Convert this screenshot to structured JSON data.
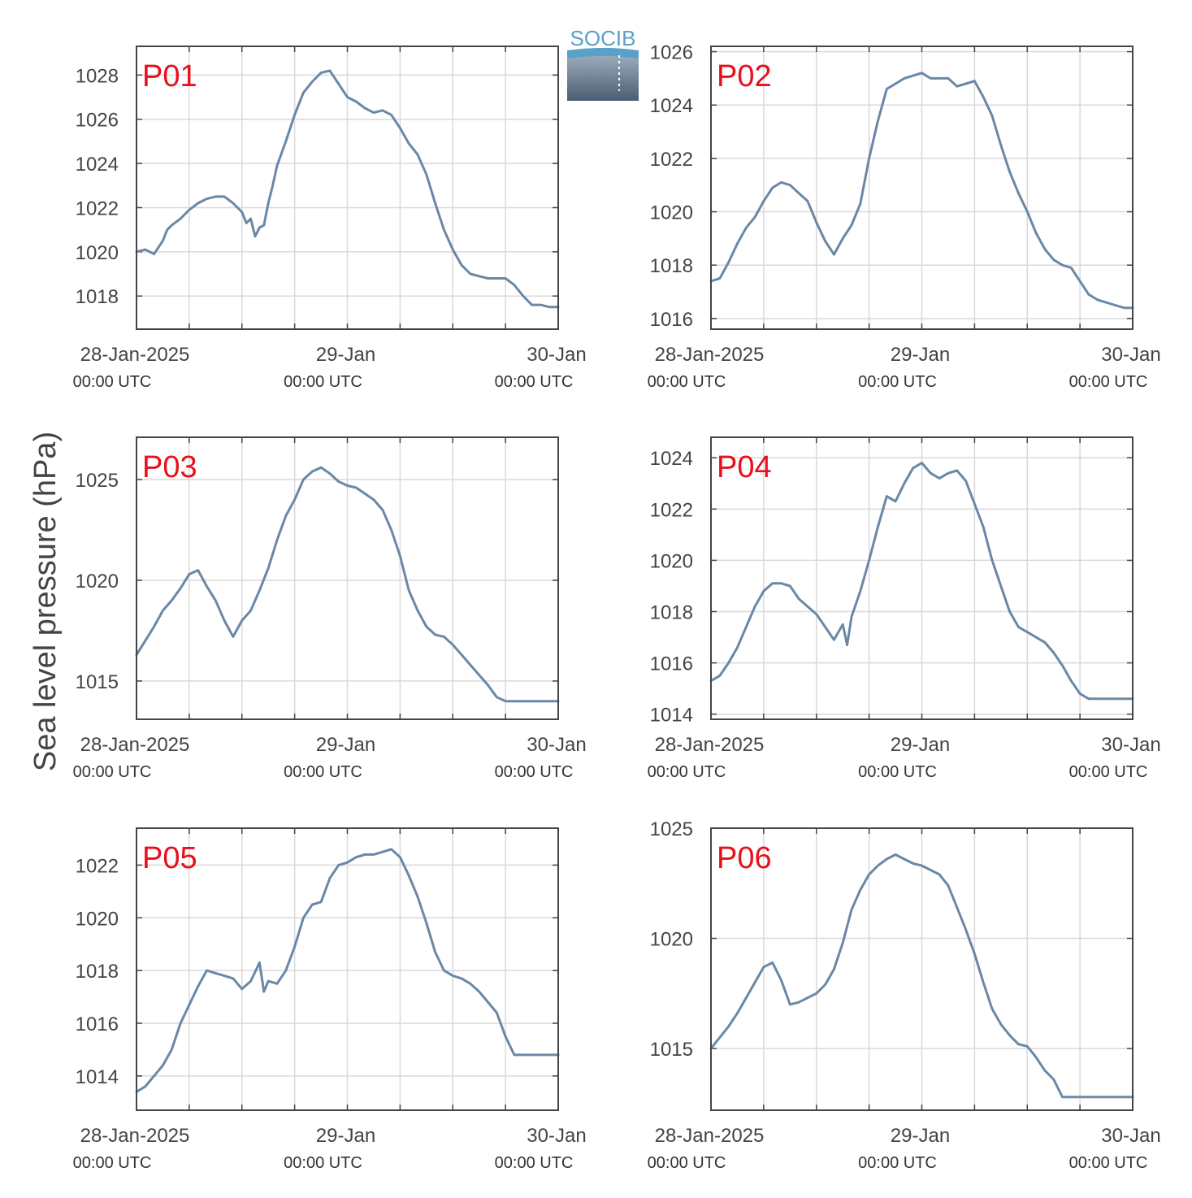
{
  "figure": {
    "ylabel": "Sea level pressure (hPa)",
    "logo": {
      "text": "SOCIB"
    },
    "colors": {
      "line": "#6a88a6",
      "grid": "#d9d9d9",
      "axes": "#444444",
      "panel_label": "#e8101a"
    },
    "x_ticks": [
      {
        "main": "28-Jan-2025",
        "sub": "00:00 UTC"
      },
      {
        "main": "29-Jan",
        "sub": "00:00 UTC"
      },
      {
        "main": "30-Jan",
        "sub": "00:00 UTC"
      }
    ]
  },
  "chart_data": [
    {
      "type": "line",
      "label": "P01",
      "ylim": [
        1016.5,
        1029.3
      ],
      "yticks": [
        1018,
        1020,
        1022,
        1024,
        1026,
        1028
      ],
      "x": [
        0,
        1,
        2,
        3,
        3.5,
        4,
        5,
        6,
        7,
        8,
        9,
        10,
        11,
        12,
        12.5,
        13,
        13.5,
        14,
        14.5,
        15,
        15.5,
        16,
        17,
        18,
        19,
        20,
        21,
        22,
        23,
        24,
        25,
        26,
        27,
        28,
        29,
        30,
        31,
        32,
        33,
        34,
        35,
        36,
        37,
        38,
        39,
        40,
        41,
        42,
        43,
        44,
        45,
        46,
        47,
        48
      ],
      "values": [
        1020.0,
        1020.1,
        1019.9,
        1020.5,
        1021.0,
        1021.2,
        1021.5,
        1021.9,
        1022.2,
        1022.4,
        1022.5,
        1022.5,
        1022.2,
        1021.8,
        1021.3,
        1021.5,
        1020.7,
        1021.1,
        1021.2,
        1022.2,
        1023.0,
        1023.9,
        1025.0,
        1026.2,
        1027.2,
        1027.7,
        1028.1,
        1028.2,
        1027.6,
        1027.0,
        1026.8,
        1026.5,
        1026.3,
        1026.4,
        1026.2,
        1025.6,
        1024.9,
        1024.4,
        1023.5,
        1022.2,
        1021.0,
        1020.1,
        1019.4,
        1019.0,
        1018.9,
        1018.8,
        1018.8,
        1018.8,
        1018.5,
        1018.0,
        1017.6,
        1017.6,
        1017.5,
        1017.5
      ]
    },
    {
      "type": "line",
      "label": "P02",
      "ylim": [
        1015.6,
        1026.2
      ],
      "yticks": [
        1016,
        1018,
        1020,
        1022,
        1024,
        1026
      ],
      "x": [
        0,
        1,
        2,
        3,
        4,
        5,
        6,
        7,
        8,
        9,
        10,
        11,
        12,
        13,
        14,
        15,
        16,
        17,
        18,
        19,
        20,
        21,
        22,
        23,
        24,
        25,
        26,
        27,
        28,
        29,
        30,
        31,
        32,
        33,
        34,
        35,
        36,
        37,
        38,
        39,
        40,
        41,
        42,
        43,
        44,
        45,
        46,
        47,
        48
      ],
      "values": [
        1017.4,
        1017.5,
        1018.1,
        1018.8,
        1019.4,
        1019.8,
        1020.4,
        1020.9,
        1021.1,
        1021.0,
        1020.7,
        1020.4,
        1019.6,
        1018.9,
        1018.4,
        1019.0,
        1019.5,
        1020.3,
        1022.0,
        1023.4,
        1024.6,
        1024.8,
        1025.0,
        1025.1,
        1025.2,
        1025.0,
        1025.0,
        1025.0,
        1024.7,
        1024.8,
        1024.9,
        1024.3,
        1023.6,
        1022.5,
        1021.5,
        1020.7,
        1020.0,
        1019.2,
        1018.6,
        1018.2,
        1018.0,
        1017.9,
        1017.4,
        1016.9,
        1016.7,
        1016.6,
        1016.5,
        1016.4,
        1016.4
      ]
    },
    {
      "type": "line",
      "label": "P03",
      "ylim": [
        1013.1,
        1027.1
      ],
      "yticks": [
        1015,
        1020,
        1025
      ],
      "x": [
        0,
        1,
        2,
        3,
        4,
        5,
        6,
        7,
        8,
        9,
        10,
        11,
        12,
        13,
        14,
        15,
        16,
        17,
        18,
        19,
        20,
        21,
        22,
        23,
        24,
        25,
        26,
        27,
        28,
        29,
        30,
        31,
        32,
        33,
        34,
        35,
        36,
        37,
        38,
        39,
        40,
        41,
        42,
        43,
        44,
        45,
        46,
        47,
        48
      ],
      "values": [
        1016.3,
        1017.0,
        1017.7,
        1018.5,
        1019.0,
        1019.6,
        1020.3,
        1020.5,
        1019.7,
        1019.0,
        1018.0,
        1017.2,
        1018.0,
        1018.5,
        1019.5,
        1020.6,
        1022.0,
        1023.2,
        1024.0,
        1025.0,
        1025.4,
        1025.6,
        1025.3,
        1024.9,
        1024.7,
        1024.6,
        1024.3,
        1024.0,
        1023.5,
        1022.5,
        1021.2,
        1019.5,
        1018.5,
        1017.7,
        1017.3,
        1017.2,
        1016.8,
        1016.3,
        1015.8,
        1015.3,
        1014.8,
        1014.2,
        1014.0,
        1014.0,
        1014.0,
        1014.0,
        1014.0,
        1014.0,
        1014.0
      ]
    },
    {
      "type": "line",
      "label": "P04",
      "ylim": [
        1013.8,
        1024.8
      ],
      "yticks": [
        1014,
        1016,
        1018,
        1020,
        1022,
        1024
      ],
      "x": [
        0,
        1,
        2,
        3,
        4,
        5,
        6,
        7,
        8,
        9,
        10,
        11,
        12,
        13,
        14,
        15,
        15.5,
        16,
        17,
        18,
        19,
        20,
        21,
        22,
        23,
        24,
        25,
        26,
        27,
        28,
        29,
        30,
        31,
        32,
        33,
        34,
        35,
        36,
        37,
        38,
        39,
        40,
        41,
        42,
        43,
        44,
        45,
        46,
        47,
        48
      ],
      "values": [
        1015.3,
        1015.5,
        1016.0,
        1016.6,
        1017.4,
        1018.2,
        1018.8,
        1019.1,
        1019.1,
        1019.0,
        1018.5,
        1018.2,
        1017.9,
        1017.4,
        1016.9,
        1017.5,
        1016.7,
        1017.8,
        1018.8,
        1020.0,
        1021.3,
        1022.5,
        1022.3,
        1023.0,
        1023.6,
        1023.8,
        1023.4,
        1023.2,
        1023.4,
        1023.5,
        1023.1,
        1022.2,
        1021.3,
        1020.0,
        1019.0,
        1018.0,
        1017.4,
        1017.2,
        1017.0,
        1016.8,
        1016.4,
        1015.9,
        1015.3,
        1014.8,
        1014.6,
        1014.6,
        1014.6,
        1014.6,
        1014.6,
        1014.6
      ]
    },
    {
      "type": "line",
      "label": "P05",
      "ylim": [
        1012.7,
        1023.4
      ],
      "yticks": [
        1014,
        1016,
        1018,
        1020,
        1022
      ],
      "x": [
        0,
        1,
        2,
        3,
        4,
        5,
        6,
        7,
        8,
        9,
        10,
        11,
        12,
        13,
        14,
        14.5,
        15,
        16,
        17,
        18,
        19,
        20,
        21,
        22,
        23,
        24,
        25,
        26,
        27,
        28,
        29,
        30,
        31,
        32,
        33,
        34,
        35,
        36,
        37,
        38,
        39,
        40,
        41,
        42,
        43,
        44,
        45,
        46,
        47,
        48
      ],
      "values": [
        1013.4,
        1013.6,
        1014.0,
        1014.4,
        1015.0,
        1016.0,
        1016.7,
        1017.4,
        1018.0,
        1017.9,
        1017.8,
        1017.7,
        1017.3,
        1017.6,
        1018.3,
        1017.2,
        1017.6,
        1017.5,
        1018.0,
        1018.9,
        1020.0,
        1020.5,
        1020.6,
        1021.5,
        1022.0,
        1022.1,
        1022.3,
        1022.4,
        1022.4,
        1022.5,
        1022.6,
        1022.3,
        1021.6,
        1020.8,
        1019.8,
        1018.7,
        1018.0,
        1017.8,
        1017.7,
        1017.5,
        1017.2,
        1016.8,
        1016.4,
        1015.5,
        1014.8,
        1014.8,
        1014.8,
        1014.8,
        1014.8,
        1014.8
      ]
    },
    {
      "type": "line",
      "label": "P06",
      "ylim": [
        1012.2,
        1025.0
      ],
      "yticks": [
        1015,
        1020,
        1025
      ],
      "x": [
        0,
        1,
        2,
        3,
        4,
        5,
        6,
        7,
        8,
        9,
        10,
        11,
        12,
        13,
        14,
        15,
        16,
        17,
        18,
        19,
        20,
        21,
        22,
        23,
        24,
        25,
        26,
        27,
        28,
        29,
        30,
        31,
        32,
        33,
        34,
        35,
        36,
        37,
        38,
        39,
        40,
        41,
        42,
        43,
        44,
        45,
        46,
        47,
        48
      ],
      "values": [
        1015.0,
        1015.5,
        1016.0,
        1016.6,
        1017.3,
        1018.0,
        1018.7,
        1018.9,
        1018.1,
        1017.0,
        1017.1,
        1017.3,
        1017.5,
        1017.9,
        1018.6,
        1019.8,
        1021.3,
        1022.2,
        1022.9,
        1023.3,
        1023.6,
        1023.8,
        1023.6,
        1023.4,
        1023.3,
        1023.1,
        1022.9,
        1022.4,
        1021.4,
        1020.4,
        1019.3,
        1018.0,
        1016.8,
        1016.1,
        1015.6,
        1015.2,
        1015.1,
        1014.6,
        1014.0,
        1013.6,
        1012.8,
        1012.8,
        1012.8,
        1012.8,
        1012.8,
        1012.8,
        1012.8,
        1012.8,
        1012.8
      ]
    }
  ]
}
